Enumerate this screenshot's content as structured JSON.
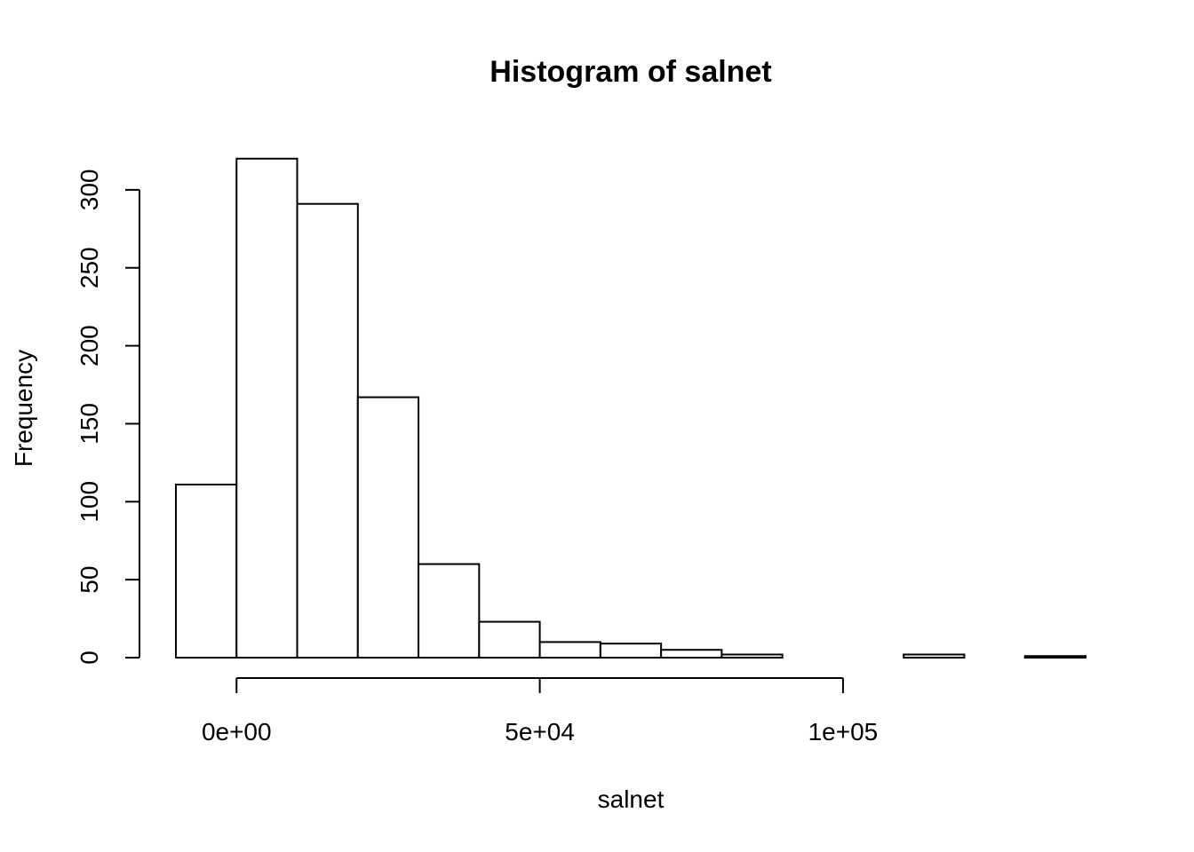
{
  "chart_data": {
    "type": "bar",
    "title": "Histogram of salnet",
    "xlabel": "salnet",
    "ylabel": "Frequency",
    "bin_edges": [
      -10000,
      0,
      10000,
      20000,
      30000,
      40000,
      50000,
      60000,
      70000,
      80000,
      90000,
      100000,
      110000,
      120000,
      130000,
      140000
    ],
    "values": [
      111,
      320,
      291,
      167,
      60,
      23,
      10,
      9,
      5,
      2,
      0,
      0,
      2,
      0,
      1
    ],
    "xlim": [
      -10000,
      140000
    ],
    "ylim": [
      0,
      320
    ],
    "x_ticks": [
      0,
      50000,
      100000
    ],
    "x_tick_labels": [
      "0e+00",
      "5e+04",
      "1e+05"
    ],
    "y_ticks": [
      0,
      50,
      100,
      150,
      200,
      250,
      300
    ],
    "y_tick_labels": [
      "0",
      "50",
      "100",
      "150",
      "200",
      "250",
      "300"
    ],
    "grid": false,
    "legend": "none",
    "bar_fill": "#ffffff",
    "bar_stroke": "#000000"
  }
}
